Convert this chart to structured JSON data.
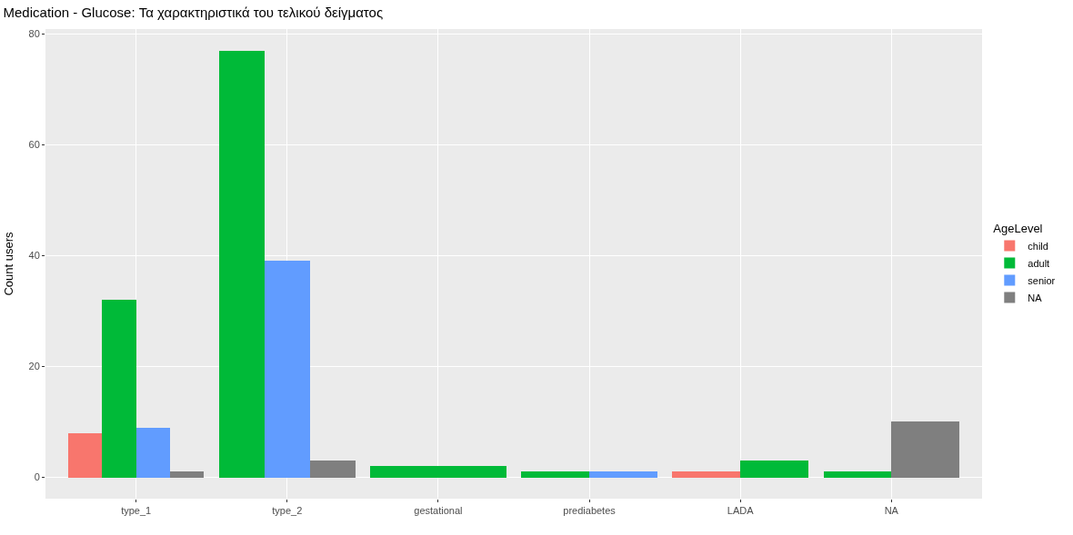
{
  "chart_data": {
    "type": "bar",
    "title": "Medication - Glucose: Τα χαρακτηριστικά του τελικού δείγματος",
    "ylabel": "Count users",
    "legend_title": "AgeLevel",
    "categories": [
      "type_1",
      "type_2",
      "gestational",
      "prediabetes",
      "LADA",
      "NA"
    ],
    "series": [
      {
        "name": "child",
        "color": "#f8766d",
        "values": [
          8,
          null,
          null,
          null,
          1,
          null
        ]
      },
      {
        "name": "adult",
        "color": "#00ba38",
        "values": [
          32,
          77,
          2,
          1,
          3,
          1
        ]
      },
      {
        "name": "senior",
        "color": "#619cff",
        "values": [
          9,
          39,
          null,
          1,
          null,
          null
        ]
      },
      {
        "name": "NA",
        "color": "#7f7f7f",
        "values": [
          1,
          3,
          null,
          null,
          null,
          10
        ]
      }
    ],
    "ylim": [
      -3.85,
      80.85
    ],
    "yticks": [
      0,
      20,
      40,
      60,
      80
    ],
    "grid": true,
    "legend": "right"
  }
}
